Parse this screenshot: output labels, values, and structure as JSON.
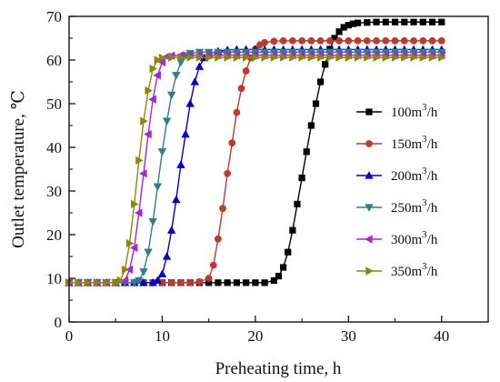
{
  "chart_data": {
    "type": "line",
    "title": "",
    "xlabel": "Preheating time, h",
    "ylabel": "Outlet temperature, ℃",
    "xlim": [
      0,
      45
    ],
    "ylim": [
      0,
      70
    ],
    "xticks": [
      0,
      10,
      20,
      30,
      40
    ],
    "yticks": [
      0,
      10,
      20,
      30,
      40,
      50,
      60,
      70
    ],
    "grid": false,
    "legend_position": "right",
    "series": [
      {
        "name": "100m³/h",
        "label_base": "100m",
        "label_sup": "3",
        "label_tail": "/h",
        "color": "#000000",
        "marker": "square",
        "x": [
          0,
          1,
          2,
          3,
          4,
          5,
          6,
          7,
          8,
          9,
          10,
          11,
          12,
          13,
          14,
          15,
          16,
          17,
          18,
          19,
          20,
          21,
          22,
          22.5,
          23,
          23.5,
          24,
          24.5,
          25,
          25.5,
          26,
          26.5,
          27,
          27.5,
          28,
          28.5,
          29,
          29.5,
          30,
          30.5,
          31,
          32,
          33,
          34,
          35,
          36,
          37,
          38,
          39,
          40
        ],
        "y": [
          9,
          9,
          9,
          9,
          9,
          9,
          9,
          9,
          9,
          9,
          9,
          9,
          9,
          9,
          9,
          9,
          9,
          9,
          9,
          9,
          9,
          9,
          9.5,
          10.5,
          12.5,
          16,
          21,
          27,
          33,
          39,
          45,
          50,
          55,
          59,
          62.5,
          65,
          66.5,
          67.5,
          68,
          68.3,
          68.5,
          68.6,
          68.7,
          68.7,
          68.7,
          68.7,
          68.7,
          68.7,
          68.7,
          68.7
        ]
      },
      {
        "name": "150m³/h",
        "label_base": "150m",
        "label_sup": "3",
        "label_tail": "/h",
        "color": "#c0392b",
        "marker": "circle",
        "x": [
          0,
          1,
          2,
          3,
          4,
          5,
          6,
          7,
          8,
          9,
          10,
          11,
          12,
          13,
          14,
          15,
          15.5,
          16,
          16.5,
          17,
          17.5,
          18,
          18.5,
          19,
          19.5,
          20,
          20.5,
          21,
          22,
          23,
          24,
          25,
          26,
          27,
          28,
          29,
          30,
          31,
          32,
          33,
          34,
          35,
          36,
          37,
          38,
          39,
          40
        ],
        "y": [
          9,
          9,
          9,
          9,
          9,
          9,
          9,
          9,
          9,
          9,
          9,
          9,
          9,
          9,
          9.2,
          10,
          13,
          19,
          26,
          34,
          41,
          48,
          53.5,
          57.5,
          60.5,
          62.5,
          63.5,
          64,
          64.3,
          64.4,
          64.4,
          64.4,
          64.4,
          64.4,
          64.4,
          64.4,
          64.4,
          64.4,
          64.4,
          64.4,
          64.4,
          64.4,
          64.4,
          64.4,
          64.4,
          64.4,
          64.4
        ]
      },
      {
        "name": "200m³/h",
        "label_base": "200m",
        "label_sup": "3",
        "label_tail": "/h",
        "color": "#0000cc",
        "marker": "triangle-up",
        "x": [
          0,
          1,
          2,
          3,
          4,
          5,
          6,
          7,
          8,
          9,
          9.5,
          10,
          10.5,
          11,
          11.5,
          12,
          12.5,
          13,
          13.5,
          14,
          14.5,
          15,
          16,
          17,
          18,
          19,
          20,
          21,
          22,
          23,
          24,
          25,
          26,
          27,
          28,
          29,
          30,
          31,
          32,
          33,
          34,
          35,
          36,
          37,
          38,
          39,
          40
        ],
        "y": [
          9,
          9,
          9,
          9,
          9,
          9,
          9,
          9,
          9,
          9,
          9.5,
          11,
          15,
          21,
          28,
          36,
          43,
          50,
          55,
          58.5,
          60.5,
          61.5,
          62,
          62.3,
          62.4,
          62.4,
          62.4,
          62.4,
          62.4,
          62.4,
          62.4,
          62.4,
          62.4,
          62.4,
          62.4,
          62.4,
          62.4,
          62.4,
          62.4,
          62.4,
          62.4,
          62.4,
          62.4,
          62.4,
          62.4,
          62.4,
          62.4
        ]
      },
      {
        "name": "250m³/h",
        "label_base": "250m",
        "label_sup": "3",
        "label_tail": "/h",
        "color": "#2e7d8c",
        "marker": "triangle-down",
        "x": [
          0,
          1,
          2,
          3,
          4,
          5,
          6,
          7,
          7.5,
          8,
          8.5,
          9,
          9.5,
          10,
          10.5,
          11,
          11.5,
          12,
          12.5,
          13,
          14,
          15,
          16,
          17,
          18,
          19,
          20,
          21,
          22,
          23,
          24,
          25,
          26,
          27,
          28,
          29,
          30,
          31,
          32,
          33,
          34,
          35,
          36,
          37,
          38,
          39,
          40
        ],
        "y": [
          9,
          9,
          9,
          9,
          9,
          9,
          9,
          9,
          9.5,
          11.5,
          16,
          23,
          31,
          39,
          46,
          52,
          56.5,
          59.5,
          61,
          61.5,
          61.8,
          61.8,
          61.8,
          61.8,
          61.8,
          61.8,
          61.8,
          61.8,
          61.8,
          61.8,
          61.8,
          61.8,
          61.8,
          61.8,
          61.8,
          61.8,
          61.8,
          61.8,
          61.8,
          61.8,
          61.8,
          61.8,
          61.8,
          61.8,
          61.8,
          61.8,
          61.8
        ]
      },
      {
        "name": "300m³/h",
        "label_base": "300m",
        "label_sup": "3",
        "label_tail": "/h",
        "color": "#aa22dd",
        "marker": "triangle-left",
        "x": [
          0,
          1,
          2,
          3,
          4,
          5,
          6,
          6.5,
          7,
          7.5,
          8,
          8.5,
          9,
          9.5,
          10,
          10.5,
          11,
          12,
          13,
          14,
          15,
          16,
          17,
          18,
          19,
          20,
          21,
          22,
          23,
          24,
          25,
          26,
          27,
          28,
          29,
          30,
          31,
          32,
          33,
          34,
          35,
          36,
          37,
          38,
          39,
          40
        ],
        "y": [
          9,
          9,
          9,
          9,
          9,
          9,
          9.5,
          12,
          17,
          25,
          34,
          43,
          51,
          56.5,
          59.5,
          60.8,
          61,
          61.1,
          61.1,
          61.1,
          61.1,
          61.1,
          61.1,
          61.1,
          61.1,
          61.1,
          61.1,
          61.1,
          61.1,
          61.1,
          61.1,
          61.1,
          61.1,
          61.1,
          61.1,
          61.1,
          61.1,
          61.1,
          61.1,
          61.1,
          61.1,
          61.1,
          61.1,
          61.1,
          61.1,
          61.1
        ]
      },
      {
        "name": "350m³/h",
        "label_base": "350m",
        "label_sup": "3",
        "label_tail": "/h",
        "color": "#8a8a00",
        "marker": "triangle-right",
        "x": [
          0,
          1,
          2,
          3,
          4,
          5,
          5.5,
          6,
          6.5,
          7,
          7.5,
          8,
          8.5,
          9,
          9.5,
          10,
          11,
          12,
          13,
          14,
          15,
          16,
          17,
          18,
          19,
          20,
          21,
          22,
          23,
          24,
          25,
          26,
          27,
          28,
          29,
          30,
          31,
          32,
          33,
          34,
          35,
          36,
          37,
          38,
          39,
          40
        ],
        "y": [
          9,
          9,
          9,
          9,
          9,
          9,
          9.5,
          12,
          18,
          27,
          37,
          46,
          53,
          58,
          60,
          60.5,
          60.6,
          60.6,
          60.6,
          60.6,
          60.6,
          60.6,
          60.6,
          60.6,
          60.6,
          60.6,
          60.6,
          60.6,
          60.6,
          60.6,
          60.6,
          60.6,
          60.6,
          60.6,
          60.6,
          60.6,
          60.6,
          60.6,
          60.6,
          60.6,
          60.6,
          60.6,
          60.6,
          60.6,
          60.6,
          60.6
        ]
      }
    ]
  }
}
